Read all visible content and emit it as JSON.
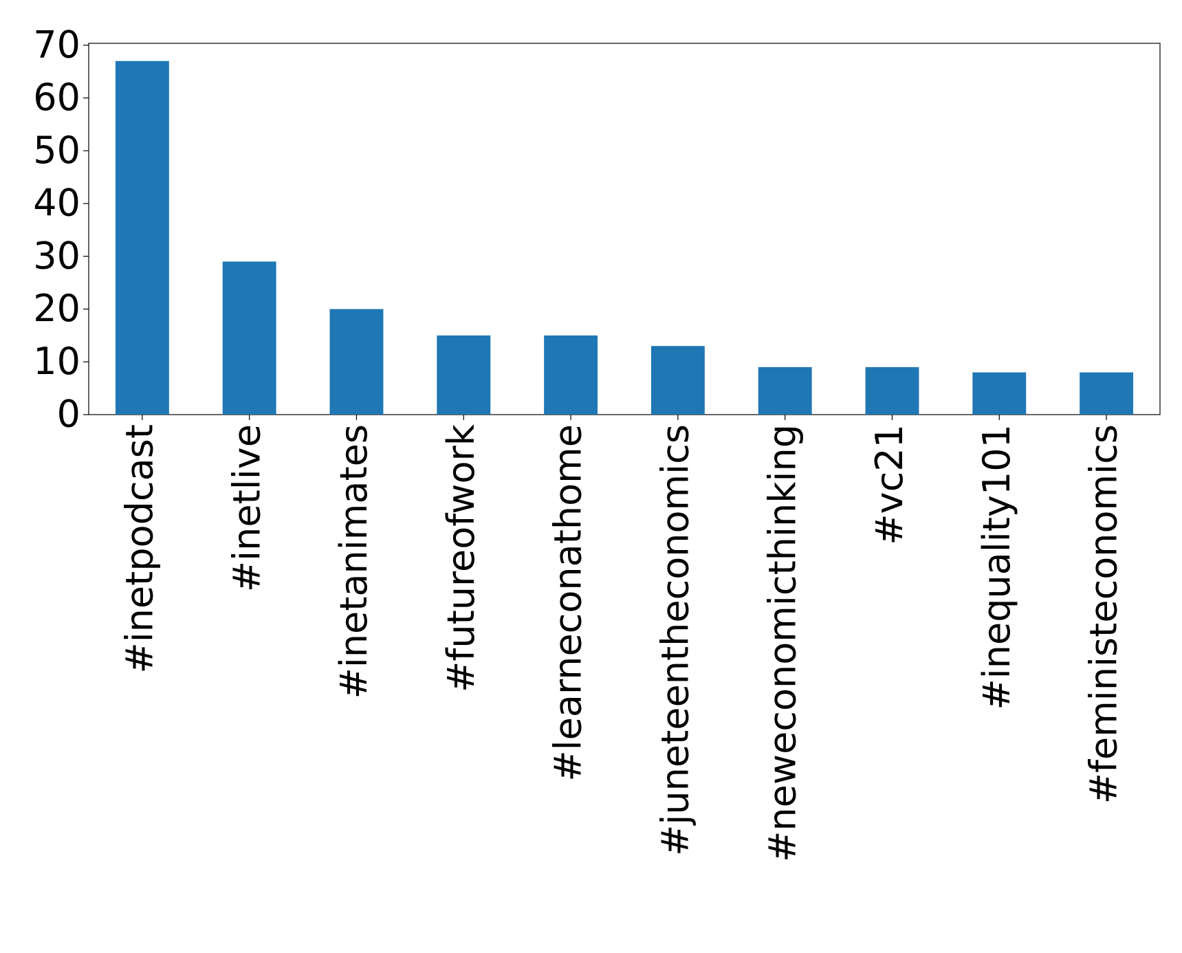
{
  "chart_data": {
    "type": "bar",
    "categories": [
      "#inetpodcast",
      "#inetlive",
      "#inetanimates",
      "#futureofwork",
      "#learneconathome",
      "#juneteentheconomics",
      "#neweconomicthinking",
      "#vc21",
      "#inequality101",
      "#feministeconomics"
    ],
    "values": [
      67,
      29,
      20,
      15,
      15,
      13,
      9,
      9,
      8,
      8
    ],
    "color": "#1f77b4",
    "ylim": [
      0,
      70.35
    ],
    "yticks": [
      0,
      10,
      20,
      30,
      40,
      50,
      60,
      70
    ],
    "grid": false
  }
}
